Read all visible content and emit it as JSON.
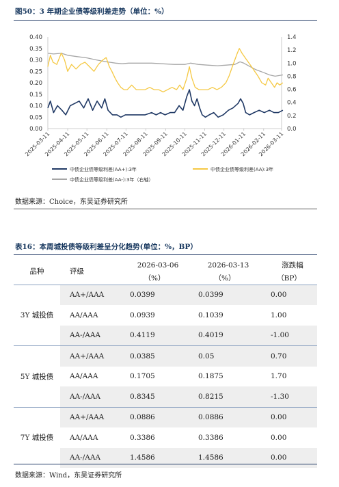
{
  "figure": {
    "title": "图50：3 年期企业债等级利差走势（单位：%）",
    "source": "数据来源：Choice，东吴证券研究所"
  },
  "chart_data": {
    "type": "line",
    "x_ticks": [
      "2025-03-11",
      "2025-04-11",
      "2025-05-11",
      "2025-06-11",
      "2025-07-11",
      "2025-08-11",
      "2025-09-11",
      "2025-10-11",
      "2025-11-11",
      "2025-12-11",
      "2026-01-11",
      "2026-02-11",
      "2026-03-11"
    ],
    "y_left_ticks": [
      "0.00",
      "0.05",
      "0.10",
      "0.15",
      "0.20",
      "0.25",
      "0.30",
      "0.35",
      "0.40"
    ],
    "y_right_ticks": [
      "0.0",
      "0.2",
      "0.4",
      "0.6",
      "0.8",
      "1.0",
      "1.2",
      "1.4"
    ],
    "y_left_range": [
      0,
      0.4
    ],
    "y_right_range": [
      0,
      1.4
    ],
    "legend_position": "bottom",
    "series": [
      {
        "name": "中债企业债等级利差(AA+):3年",
        "axis": "left",
        "color": "#1f3864",
        "points": [
          [
            "2025-03-11",
            0.09
          ],
          [
            "2025-03-15",
            0.12
          ],
          [
            "2025-03-20",
            0.07
          ],
          [
            "2025-03-26",
            0.1
          ],
          [
            "2025-04-02",
            0.08
          ],
          [
            "2025-04-08",
            0.06
          ],
          [
            "2025-04-15",
            0.1
          ],
          [
            "2025-04-22",
            0.11
          ],
          [
            "2025-04-29",
            0.12
          ],
          [
            "2025-05-06",
            0.09
          ],
          [
            "2025-05-13",
            0.13
          ],
          [
            "2025-05-20",
            0.08
          ],
          [
            "2025-05-27",
            0.12
          ],
          [
            "2025-06-03",
            0.09
          ],
          [
            "2025-06-08",
            0.13
          ],
          [
            "2025-06-13",
            0.08
          ],
          [
            "2025-06-20",
            0.06
          ],
          [
            "2025-06-27",
            0.06
          ],
          [
            "2025-07-03",
            0.05
          ],
          [
            "2025-07-10",
            0.06
          ],
          [
            "2025-07-20",
            0.06
          ],
          [
            "2025-08-01",
            0.06
          ],
          [
            "2025-08-10",
            0.06
          ],
          [
            "2025-08-20",
            0.07
          ],
          [
            "2025-08-27",
            0.06
          ],
          [
            "2025-09-03",
            0.07
          ],
          [
            "2025-09-10",
            0.06
          ],
          [
            "2025-09-18",
            0.07
          ],
          [
            "2025-09-25",
            0.07
          ],
          [
            "2025-10-02",
            0.1
          ],
          [
            "2025-10-08",
            0.08
          ],
          [
            "2025-10-14",
            0.14
          ],
          [
            "2025-10-18",
            0.17
          ],
          [
            "2025-10-22",
            0.12
          ],
          [
            "2025-10-26",
            0.1
          ],
          [
            "2025-10-30",
            0.13
          ],
          [
            "2025-11-03",
            0.09
          ],
          [
            "2025-11-07",
            0.06
          ],
          [
            "2025-11-12",
            0.05
          ],
          [
            "2025-11-18",
            0.06
          ],
          [
            "2025-11-25",
            0.07
          ],
          [
            "2025-12-02",
            0.05
          ],
          [
            "2025-12-10",
            0.06
          ],
          [
            "2025-12-18",
            0.08
          ],
          [
            "2025-12-25",
            0.09
          ],
          [
            "2026-01-02",
            0.11
          ],
          [
            "2026-01-06",
            0.13
          ],
          [
            "2026-01-10",
            0.11
          ],
          [
            "2026-01-14",
            0.07
          ],
          [
            "2026-01-20",
            0.06
          ],
          [
            "2026-01-27",
            0.07
          ],
          [
            "2026-02-04",
            0.08
          ],
          [
            "2026-02-12",
            0.07
          ],
          [
            "2026-02-20",
            0.08
          ],
          [
            "2026-02-27",
            0.07
          ],
          [
            "2026-03-06",
            0.07
          ],
          [
            "2026-03-13",
            0.08
          ]
        ]
      },
      {
        "name": "中债企业债等级利差(AA):3年",
        "axis": "left",
        "color": "#f5c842",
        "points": [
          [
            "2025-03-11",
            0.27
          ],
          [
            "2025-03-15",
            0.32
          ],
          [
            "2025-03-19",
            0.29
          ],
          [
            "2025-03-25",
            0.28
          ],
          [
            "2025-04-01",
            0.33
          ],
          [
            "2025-04-06",
            0.3
          ],
          [
            "2025-04-11",
            0.25
          ],
          [
            "2025-04-17",
            0.28
          ],
          [
            "2025-04-24",
            0.26
          ],
          [
            "2025-05-01",
            0.28
          ],
          [
            "2025-05-08",
            0.29
          ],
          [
            "2025-05-15",
            0.27
          ],
          [
            "2025-05-22",
            0.25
          ],
          [
            "2025-05-29",
            0.28
          ],
          [
            "2025-06-05",
            0.3
          ],
          [
            "2025-06-10",
            0.31
          ],
          [
            "2025-06-15",
            0.27
          ],
          [
            "2025-06-19",
            0.25
          ],
          [
            "2025-06-24",
            0.22
          ],
          [
            "2025-06-28",
            0.2
          ],
          [
            "2025-07-03",
            0.18
          ],
          [
            "2025-07-08",
            0.17
          ],
          [
            "2025-07-13",
            0.17
          ],
          [
            "2025-07-20",
            0.19
          ],
          [
            "2025-07-27",
            0.17
          ],
          [
            "2025-08-03",
            0.17
          ],
          [
            "2025-08-10",
            0.17
          ],
          [
            "2025-08-17",
            0.18
          ],
          [
            "2025-08-24",
            0.17
          ],
          [
            "2025-08-31",
            0.17
          ],
          [
            "2025-09-07",
            0.16
          ],
          [
            "2025-09-14",
            0.17
          ],
          [
            "2025-09-21",
            0.18
          ],
          [
            "2025-09-28",
            0.17
          ],
          [
            "2025-10-03",
            0.19
          ],
          [
            "2025-10-08",
            0.17
          ],
          [
            "2025-10-14",
            0.22
          ],
          [
            "2025-10-18",
            0.27
          ],
          [
            "2025-10-22",
            0.22
          ],
          [
            "2025-10-27",
            0.18
          ],
          [
            "2025-11-02",
            0.17
          ],
          [
            "2025-11-09",
            0.17
          ],
          [
            "2025-11-16",
            0.17
          ],
          [
            "2025-11-23",
            0.18
          ],
          [
            "2025-11-30",
            0.17
          ],
          [
            "2025-12-07",
            0.18
          ],
          [
            "2025-12-14",
            0.2
          ],
          [
            "2025-12-19",
            0.23
          ],
          [
            "2025-12-24",
            0.27
          ],
          [
            "2025-12-28",
            0.3
          ],
          [
            "2026-01-01",
            0.33
          ],
          [
            "2026-01-04",
            0.35
          ],
          [
            "2026-01-08",
            0.33
          ],
          [
            "2026-01-13",
            0.31
          ],
          [
            "2026-01-18",
            0.29
          ],
          [
            "2026-01-23",
            0.27
          ],
          [
            "2026-01-28",
            0.25
          ],
          [
            "2026-02-02",
            0.23
          ],
          [
            "2026-02-08",
            0.2
          ],
          [
            "2026-02-14",
            0.19
          ],
          [
            "2026-02-18",
            0.22
          ],
          [
            "2026-02-23",
            0.2
          ],
          [
            "2026-02-28",
            0.18
          ],
          [
            "2026-03-04",
            0.2
          ],
          [
            "2026-03-08",
            0.19
          ],
          [
            "2026-03-13",
            0.2
          ]
        ]
      },
      {
        "name": "中债企业债等级利差(AA-):3年（右轴）",
        "axis": "right",
        "color": "#a6a6a6",
        "points": [
          [
            "2025-03-11",
            1.15
          ],
          [
            "2025-03-20",
            1.14
          ],
          [
            "2025-04-01",
            1.15
          ],
          [
            "2025-04-11",
            1.12
          ],
          [
            "2025-04-25",
            1.1
          ],
          [
            "2025-05-11",
            1.08
          ],
          [
            "2025-05-25",
            1.05
          ],
          [
            "2025-06-11",
            1.02
          ],
          [
            "2025-06-25",
            1.0
          ],
          [
            "2025-07-05",
            0.99
          ],
          [
            "2025-07-15",
            1.0
          ],
          [
            "2025-08-01",
            1.0
          ],
          [
            "2025-08-20",
            1.0
          ],
          [
            "2025-09-05",
            0.99
          ],
          [
            "2025-09-25",
            0.98
          ],
          [
            "2025-10-11",
            0.98
          ],
          [
            "2025-10-20",
            1.0
          ],
          [
            "2025-11-01",
            0.98
          ],
          [
            "2025-11-15",
            0.97
          ],
          [
            "2025-12-01",
            0.96
          ],
          [
            "2025-12-15",
            0.97
          ],
          [
            "2025-12-28",
            0.98
          ],
          [
            "2026-01-05",
            1.02
          ],
          [
            "2026-01-11",
            1.0
          ],
          [
            "2026-01-20",
            0.95
          ],
          [
            "2026-01-30",
            0.9
          ],
          [
            "2026-02-10",
            0.86
          ],
          [
            "2026-02-20",
            0.82
          ],
          [
            "2026-03-01",
            0.8
          ],
          [
            "2026-03-13",
            0.82
          ]
        ]
      }
    ]
  },
  "table": {
    "title": "表16：本周城投债等级利差呈分化趋势(单位：%，BP）",
    "header": {
      "kind": "品种",
      "rating": "评级",
      "date1": "2026-03-06",
      "date1_unit": "（%）",
      "date2": "2026-03-13",
      "date2_unit": "（%）",
      "change": "涨跌幅",
      "change_unit": "（BP）"
    },
    "groups": [
      {
        "kind": "3Y 城投债",
        "rows": [
          {
            "rating": "AA+/AAA",
            "v1": "0.0399",
            "v2": "0.0399",
            "chg": "0.00"
          },
          {
            "rating": "AA/AAA",
            "v1": "0.0939",
            "v2": "0.1039",
            "chg": "1.00"
          },
          {
            "rating": "AA-/AAA",
            "v1": "0.4119",
            "v2": "0.4019",
            "chg": "-1.00"
          }
        ]
      },
      {
        "kind": "5Y 城投债",
        "rows": [
          {
            "rating": "AA+/AAA",
            "v1": "0.0385",
            "v2": "0.05",
            "chg": "0.70"
          },
          {
            "rating": "AA/AAA",
            "v1": "0.1705",
            "v2": "0.1875",
            "chg": "1.70"
          },
          {
            "rating": "AA-/AAA",
            "v1": "0.8345",
            "v2": "0.8215",
            "chg": "-1.30"
          }
        ]
      },
      {
        "kind": "7Y 城投债",
        "rows": [
          {
            "rating": "AA+/AAA",
            "v1": "0.0886",
            "v2": "0.0886",
            "chg": "0.00"
          },
          {
            "rating": "AA/AAA",
            "v1": "0.3386",
            "v2": "0.3386",
            "chg": "0.00"
          },
          {
            "rating": "AA-/AAA",
            "v1": "1.4586",
            "v2": "1.4586",
            "chg": "0.00"
          }
        ]
      }
    ],
    "source": "数据来源：Wind，东吴证券研究所"
  }
}
